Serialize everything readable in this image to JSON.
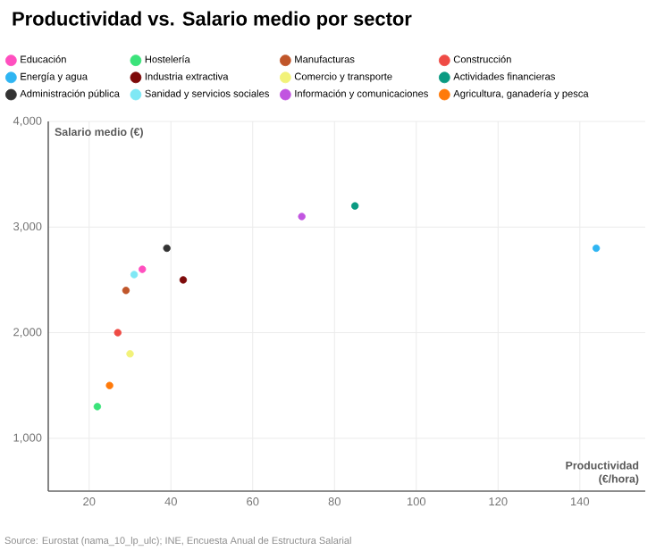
{
  "chart_data": {
    "type": "scatter",
    "title": "Productividad vs. Salario medio por sector",
    "xlabel": "Productividad (€/hora)",
    "ylabel": "Salario medio (€)",
    "xlim": [
      10,
      156
    ],
    "ylim": [
      500,
      4000
    ],
    "xticks": [
      20,
      40,
      60,
      80,
      100,
      120,
      140
    ],
    "yticks": [
      {
        "value": 1000,
        "label": "1,000"
      },
      {
        "value": 2000,
        "label": "2,000"
      },
      {
        "value": 3000,
        "label": "3,000"
      },
      {
        "value": 4000,
        "label": "4,000"
      }
    ],
    "grid": true,
    "legend": "top",
    "annotations": [
      "Source: Eurostat (nama_10_lp_ulc); INE, Encuesta Anual de Estructura Salarial"
    ],
    "series": [
      {
        "name": "Educación",
        "color": "#ff4fbf",
        "x": [
          33
        ],
        "values": [
          2600
        ]
      },
      {
        "name": "Hostelería",
        "color": "#3be37a",
        "x": [
          22
        ],
        "values": [
          1300
        ]
      },
      {
        "name": "Manufacturas",
        "color": "#c0562a",
        "x": [
          29
        ],
        "values": [
          2400
        ]
      },
      {
        "name": "Construcción",
        "color": "#ef4b45",
        "x": [
          27
        ],
        "values": [
          2000
        ]
      },
      {
        "name": "Energía y agua",
        "color": "#2fb5f2",
        "x": [
          144
        ],
        "values": [
          2800
        ]
      },
      {
        "name": "Industria extractiva",
        "color": "#7d0a0a",
        "x": [
          43
        ],
        "values": [
          2500
        ]
      },
      {
        "name": "Comercio y transporte",
        "color": "#f2f27a",
        "x": [
          30
        ],
        "values": [
          1800
        ]
      },
      {
        "name": "Actividades financieras",
        "color": "#0a9a82",
        "x": [
          85
        ],
        "values": [
          3200
        ]
      },
      {
        "name": "Administración pública",
        "color": "#333333",
        "x": [
          39
        ],
        "values": [
          2800
        ]
      },
      {
        "name": "Sanidad y servicios sociales",
        "color": "#7fe8f5",
        "x": [
          31
        ],
        "values": [
          2550
        ]
      },
      {
        "name": "Información y comunicaciones",
        "color": "#c155e0",
        "x": [
          72
        ],
        "values": [
          3100
        ]
      },
      {
        "name": "Agricultura, ganadería y pesca",
        "color": "#ff7a0a",
        "x": [
          25
        ],
        "values": [
          1500
        ]
      }
    ]
  }
}
